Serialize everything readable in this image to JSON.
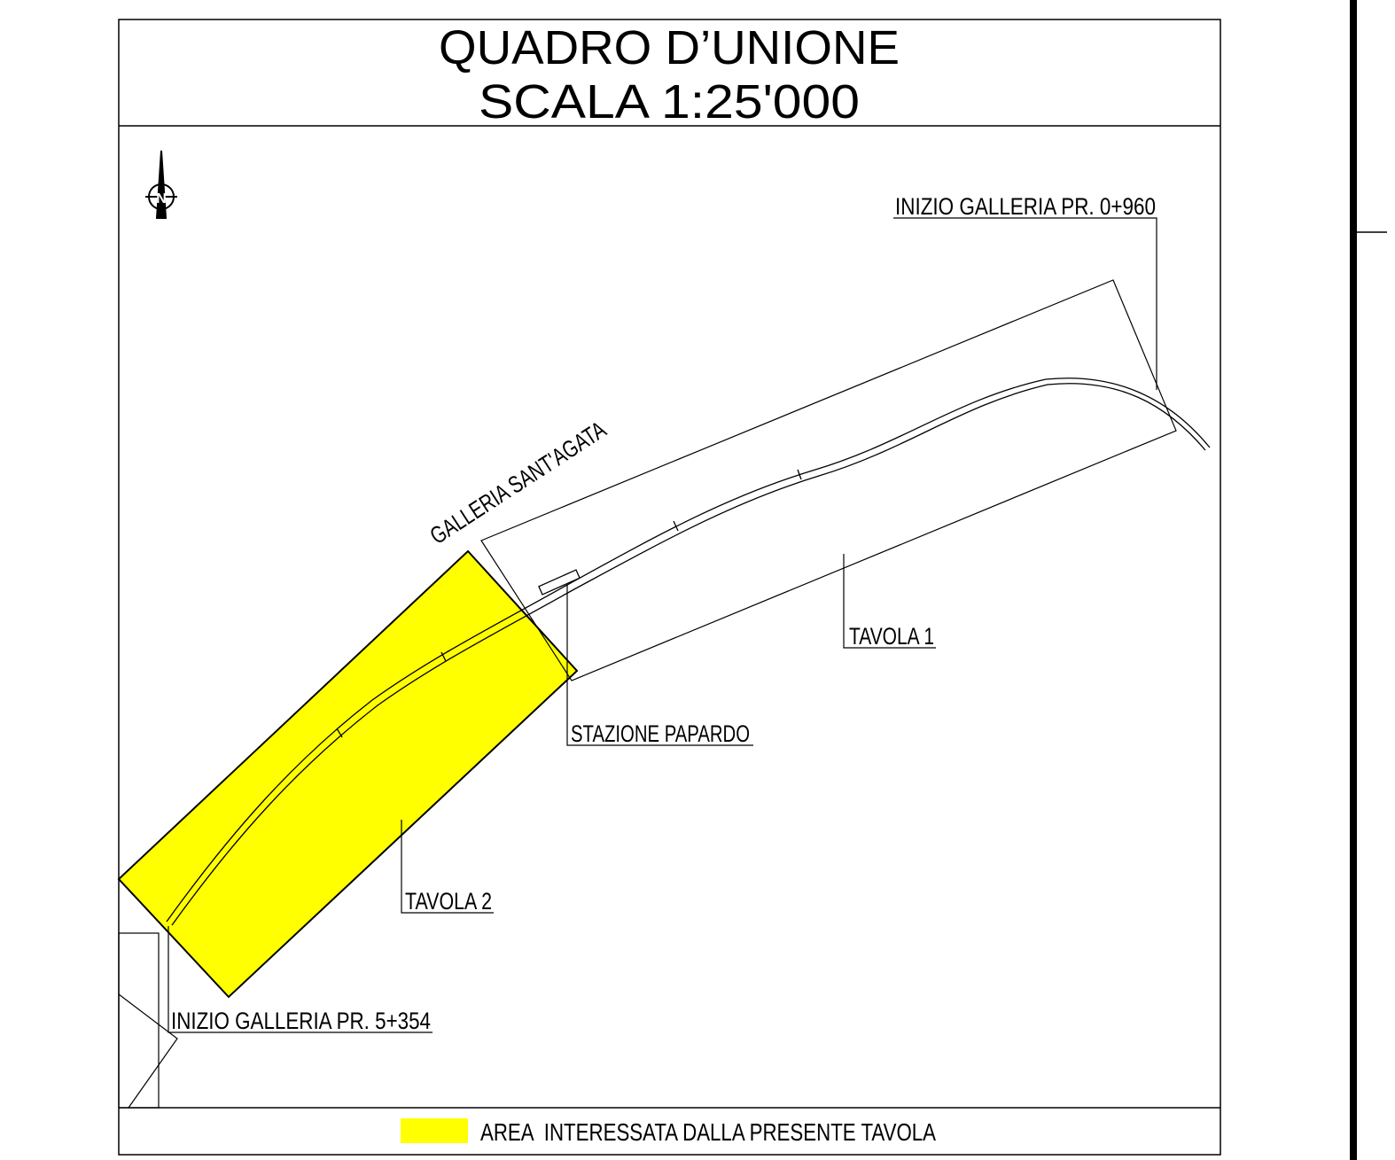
{
  "header": {
    "title": "QUADRO D’UNIONE",
    "scale": "SCALA 1:25'000"
  },
  "labels": {
    "start_tunnel_north": "INIZIO GALLERIA PR. 0+960",
    "tunnel_name": "GALLERIA SANT'AGATA",
    "sheet_1": "TAVOLA 1",
    "station": "STAZIONE PAPARDO",
    "sheet_2": "TAVOLA 2",
    "start_tunnel_south": "INIZIO GALLERIA PR. 5+354"
  },
  "legend": {
    "text": "AREA  INTERESSATA DALLA PRESENTE TAVOLA"
  }
}
